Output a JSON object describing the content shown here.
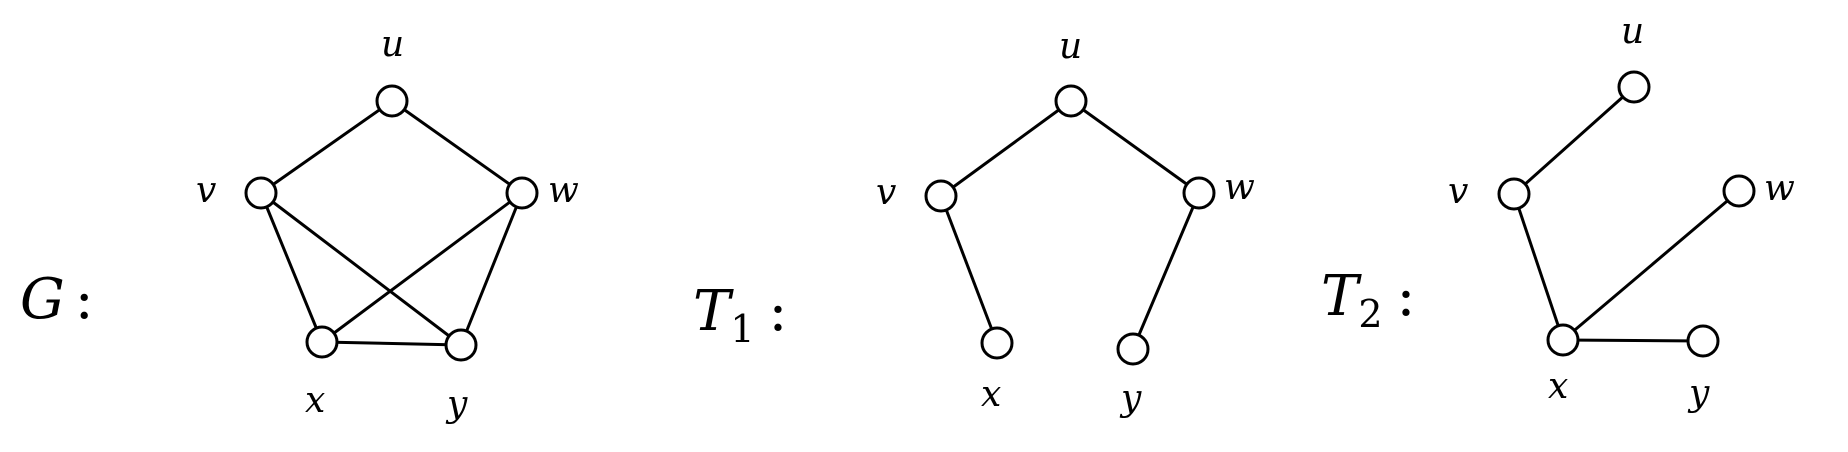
{
  "graphs": [
    {
      "id": "G",
      "label": "G",
      "subscript": "",
      "colon": ":",
      "vertices": [
        "u",
        "v",
        "w",
        "x",
        "y"
      ],
      "edges": [
        [
          "u",
          "v"
        ],
        [
          "u",
          "w"
        ],
        [
          "v",
          "x"
        ],
        [
          "v",
          "y"
        ],
        [
          "w",
          "x"
        ],
        [
          "w",
          "y"
        ],
        [
          "x",
          "y"
        ]
      ]
    },
    {
      "id": "T1",
      "label": "T",
      "subscript": "1",
      "colon": ":",
      "vertices": [
        "u",
        "v",
        "w",
        "x",
        "y"
      ],
      "edges": [
        [
          "u",
          "v"
        ],
        [
          "u",
          "w"
        ],
        [
          "v",
          "x"
        ],
        [
          "w",
          "y"
        ]
      ]
    },
    {
      "id": "T2",
      "label": "T",
      "subscript": "2",
      "colon": ":",
      "vertices": [
        "u",
        "v",
        "w",
        "x",
        "y"
      ],
      "edges": [
        [
          "u",
          "v"
        ],
        [
          "v",
          "x"
        ],
        [
          "x",
          "w"
        ],
        [
          "x",
          "y"
        ]
      ]
    }
  ]
}
